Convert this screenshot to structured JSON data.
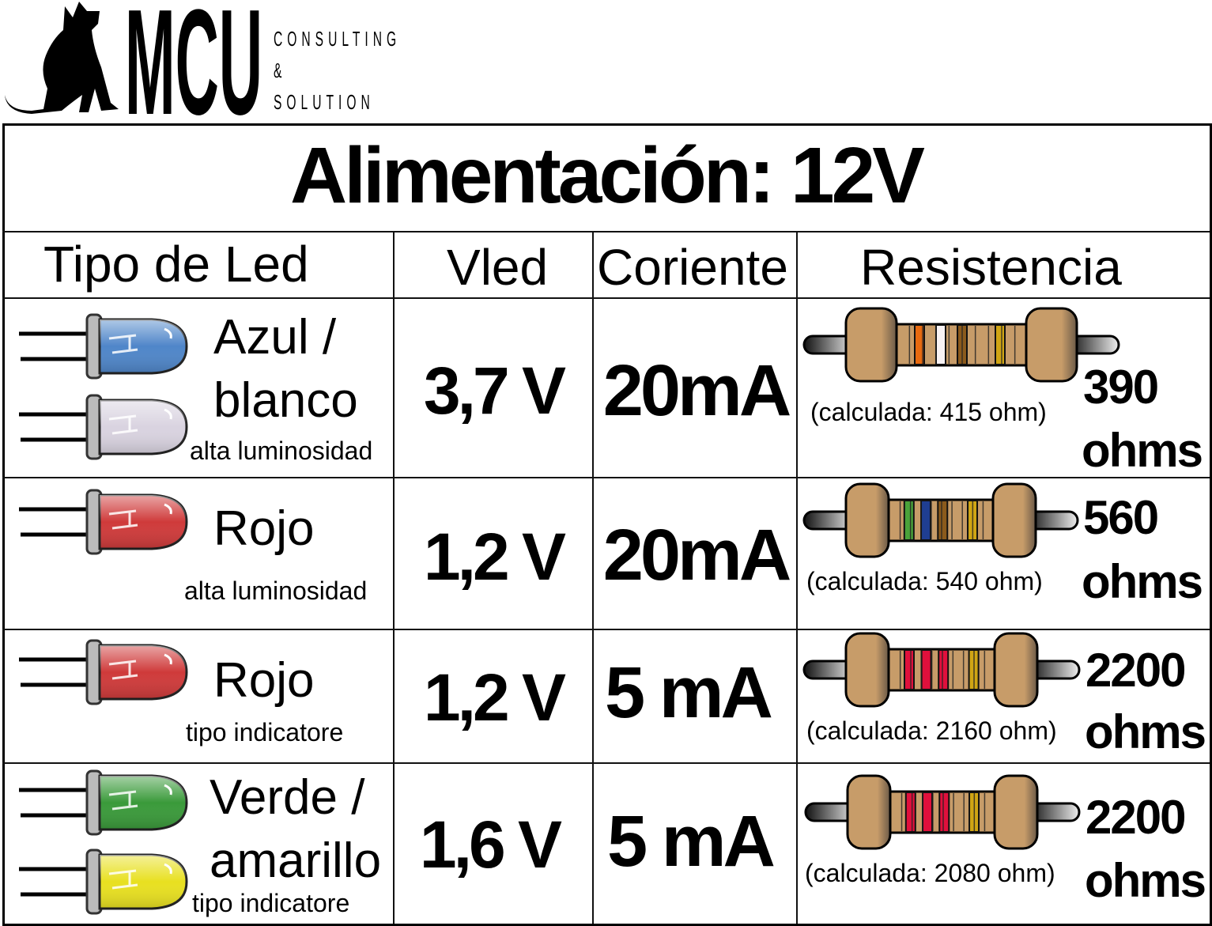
{
  "logo": {
    "brand": "MCU",
    "line1": "CONSULTING",
    "line2": "&",
    "line3": "SOLUTION",
    "mascot": "dog-silhouette"
  },
  "title": "Alimentación: 12V",
  "headers": [
    "Tipo de Led",
    "Vled",
    "Coriente",
    "Resistencia"
  ],
  "rows": [
    {
      "led_name_1": "Azul /",
      "led_name_2": "blanco",
      "led_note": "alta luminosidad",
      "led_colors": [
        "#4f86c9",
        "#d9d3e0"
      ],
      "vled": "3,7 V",
      "current": "20mA",
      "calc": "(calculada: 415 ohm)",
      "res_value": "390",
      "res_unit": "ohms",
      "bands": [
        "#e86a10",
        "#f7f2f4",
        "#8b5a1c",
        "#d0a514"
      ]
    },
    {
      "led_name_1": "Rojo",
      "led_name_2": "",
      "led_note": "alta luminosidad",
      "led_colors": [
        "#cf3a3a"
      ],
      "vled": "1,2 V",
      "current": "20mA",
      "calc": "(calculada: 540 ohm)",
      "res_value": "560",
      "res_unit": "ohms",
      "bands": [
        "#4aa33a",
        "#1f3e92",
        "#8b5a1c",
        "#d0a514"
      ]
    },
    {
      "led_name_1": "Rojo",
      "led_name_2": "",
      "led_note": "tipo indicatore",
      "led_colors": [
        "#cf3a3a"
      ],
      "vled": "1,2 V",
      "current": "5 mA",
      "calc": "(calculada: 2160 ohm)",
      "res_value": "2200",
      "res_unit": "ohms",
      "bands": [
        "#e0103c",
        "#e0103c",
        "#e0103c",
        "#d0a514"
      ]
    },
    {
      "led_name_1": "Verde /",
      "led_name_2": "amarillo",
      "led_note": "tipo indicatore",
      "led_colors": [
        "#3a9a3a",
        "#e8e020"
      ],
      "vled": "1,6 V",
      "current": "5 mA",
      "calc": "(calculada: 2080 ohm)",
      "res_value": "2200",
      "res_unit": "ohms",
      "bands": [
        "#e0103c",
        "#e0103c",
        "#e0103c",
        "#d0a514"
      ]
    }
  ],
  "colors": {
    "resistor_body": "#c79c69",
    "border": "#000000"
  }
}
